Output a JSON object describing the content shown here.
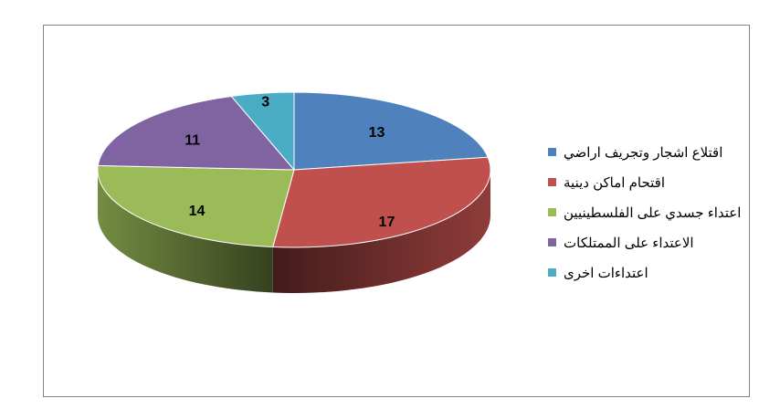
{
  "chart_data": {
    "type": "pie",
    "style": "3d",
    "categories": [
      "اقتلاع اشجار وتجريف اراضي",
      "اقتحام اماكن دينية",
      "اعتداء جسدي على الفلسطينيين",
      "الاعتداء على الممتلكات",
      "اعتداءات اخرى"
    ],
    "values": [
      13,
      17,
      14,
      11,
      3
    ],
    "data_labels": [
      "13",
      "17",
      "14",
      "11",
      "3"
    ],
    "colors": [
      "#4F81BD",
      "#C0504D",
      "#9BBB59",
      "#8064A2",
      "#4BACC6"
    ],
    "legend_position": "right",
    "title": ""
  }
}
